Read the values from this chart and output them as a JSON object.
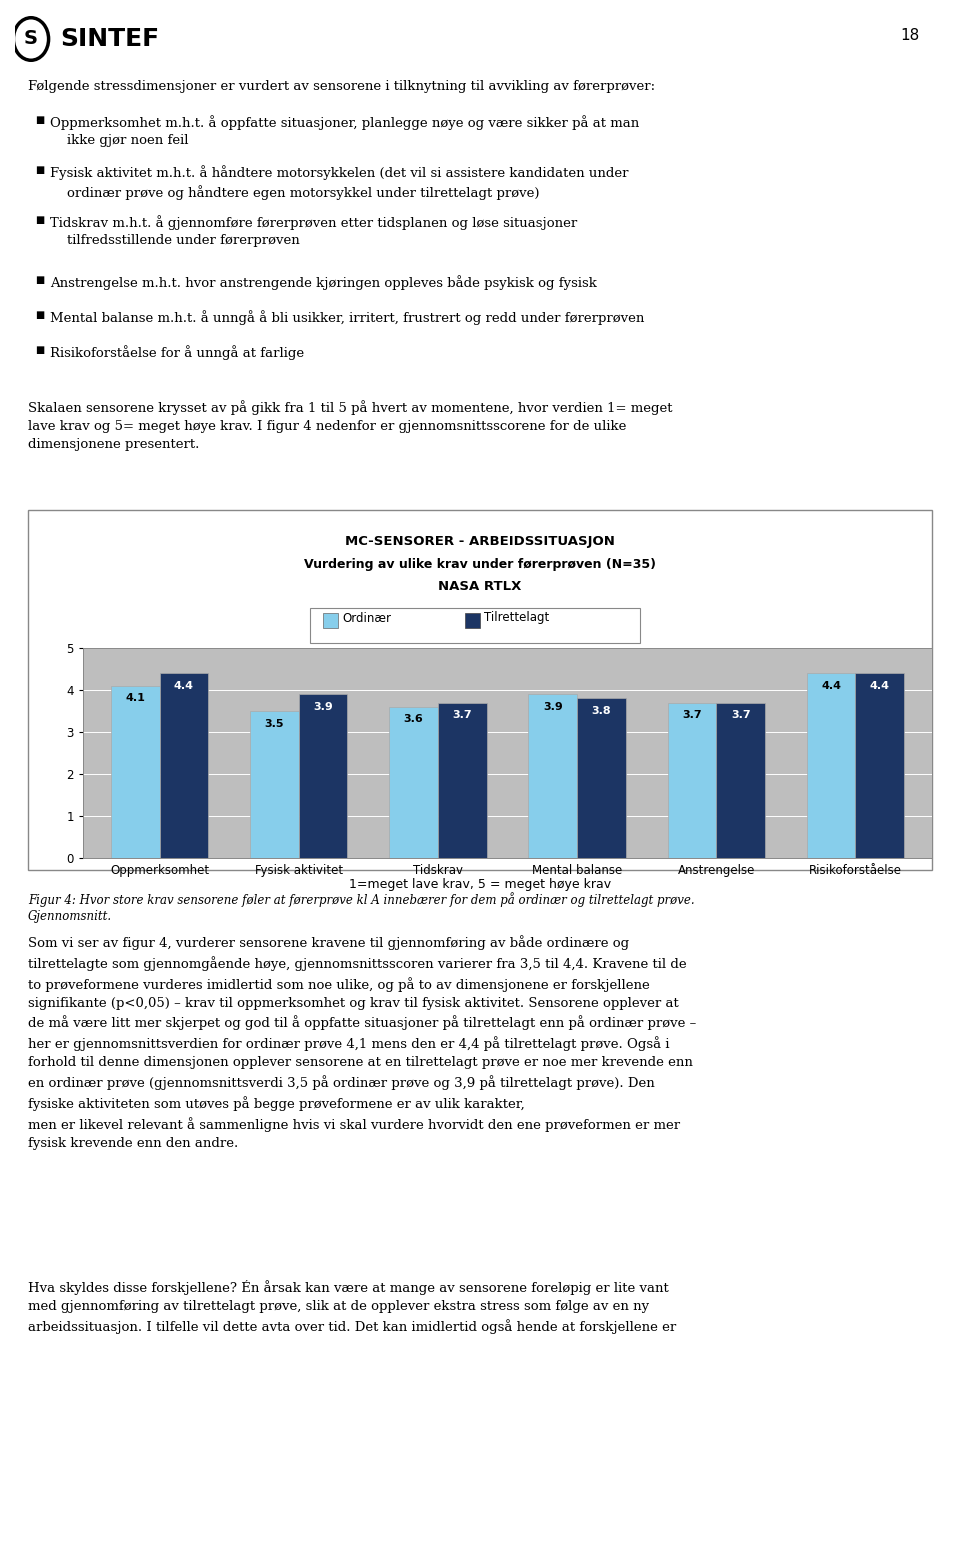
{
  "title_line1": "MC-SENSORER - ARBEIDSSITUASJON",
  "title_line2": "Vurdering av ulike krav under førerprøven (N=35)",
  "title_line3": "NASA RTLX",
  "categories": [
    "Oppmerksomhet",
    "Fysisk aktivitet",
    "Tidskrav",
    "Mental balanse",
    "Anstrengelse",
    "Risikoforståelse"
  ],
  "ordinaer_values": [
    4.1,
    3.5,
    3.6,
    3.9,
    3.7,
    4.4
  ],
  "tilrettelagt_values": [
    4.4,
    3.9,
    3.7,
    3.8,
    3.7,
    4.4
  ],
  "ordinaer_color": "#87CEEB",
  "tilrettelagt_color": "#1C3564",
  "legend_ordinaer": "Ordinær",
  "legend_tilrettelagt": "Tilrettelagt",
  "ylim": [
    0,
    5
  ],
  "yticks": [
    0,
    1,
    2,
    3,
    4,
    5
  ],
  "xlabel": "1=meget lave krav, 5 = meget høye krav",
  "bar_width": 0.35,
  "chart_bg": "#BEBEBE",
  "outer_bg": "#FFFFFF",
  "border_color": "#888888",
  "title_fontsize": 9.5,
  "label_fontsize": 9,
  "tick_fontsize": 8.5,
  "value_fontsize": 8,
  "page_number": "18",
  "intro_line": "Følgende stressdimensjoner er vurdert av sensorene i tilknytning til avvikling av førerprøver:",
  "bullet_items": [
    "Oppmerksomhet m.h.t. å oppfatte situasjoner, planlegge nøye og være sikker på at man\n    ikke gjør noen feil",
    "Fysisk aktivitet m.h.t. å håndtere motorsykkelen (det vil si assistere kandidaten under\n    ordinær prøve og håndtere egen motorsykkel under tilrettelagt prøve)",
    "Tidskrav m.h.t. å gjennomføre førerprøven etter tidsplanen og løse situasjoner\n    tilfredsstillende under førerprøven",
    "Anstrengelse m.h.t. hvor anstrengende kjøringen oppleves både psykisk og fysisk",
    "Mental balanse m.h.t. å unngå å bli usikker, irritert, frustrert og redd under førerprøven",
    "Risikoforståelse for å unngå at farlige"
  ],
  "pre_chart_text": "Skalaen sensorene krysset av på gikk fra 1 til 5 på hvert av momentene, hvor verdien 1= meget\nlave krav og 5= meget høye krav. I figur 4 nedenfor er gjennomsnittsscorene for de ulike\ndimensjonene presentert.",
  "caption_line1": "Figur 4: Hvor store krav sensorene føler at førerprøve kl A innebærer for dem på ordinær og tilrettelagt prøve.",
  "caption_line2": "Gjennomsnitt.",
  "post_chart_text1": "Som vi ser av figur 4, vurderer sensorene kravene til gjennomføring av både ordinære og\ntilrettelagte som gjennomgående høye, gjennomsnittsscoren varierer fra 3,5 til 4,4. Kravene til de\nto prøveformene vurderes imidlertid som noe ulike, og på to av dimensjonene er forskjellene\nsignifikante (p<0,05) – krav til oppmerksomhet og krav til fysisk aktivitet. Sensorene opplever at\nde må være litt mer skjerpet og god til å oppfatte situasjoner på tilrettelagt enn på ordinær prøve –\nher er gjennomsnittsverdien for ordinær prøve 4,1 mens den er 4,4 på tilrettelagt prøve. Også i\nforhold til denne dimensjonen opplever sensorene at en tilrettelagt prøve er noe mer krevende enn\nen ordinær prøve (gjennomsnittsverdi 3,5 på ordinær prøve og 3,9 på tilrettelagt prøve). Den\nfysiske aktiviteten som utøves på begge prøveformene er av ulik karakter,\nmen er likevel relevant å sammenligne hvis vi skal vurdere hvorvidt den ene prøveformen er mer\nfysisk krevende enn den andre.",
  "post_chart_text2": "Hva skyldes disse forskjellene? Én årsak kan være at mange av sensorene foreløpig er lite vant\nmed gjennomføring av tilrettelagt prøve, slik at de opplever ekstra stress som følge av en ny\narbeidssituasjon. I tilfelle vil dette avta over tid. Det kan imidlertid også hende at forskjellene er"
}
